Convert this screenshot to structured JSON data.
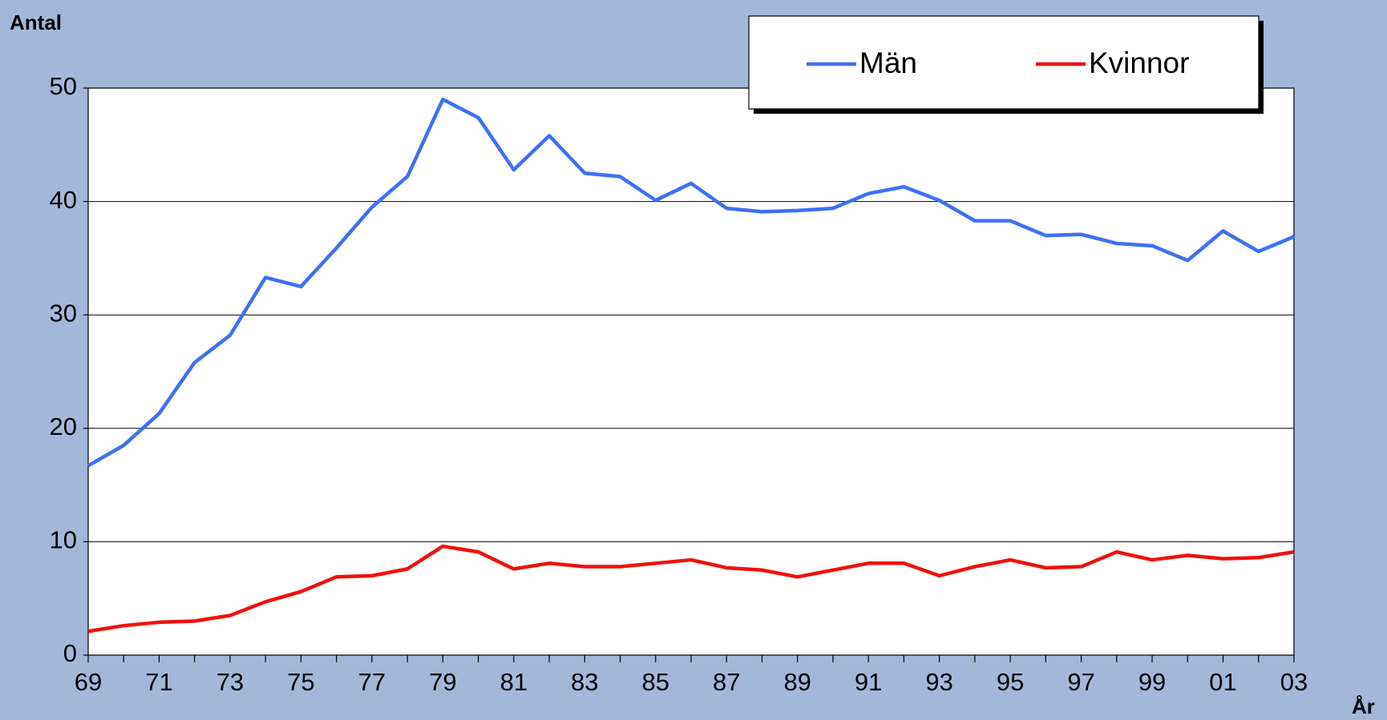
{
  "chart_data": {
    "type": "line",
    "y_axis_label": "Antal",
    "x_axis_label": "År",
    "categories": [
      "69",
      null,
      "71",
      null,
      "73",
      null,
      "75",
      null,
      "77",
      null,
      "79",
      null,
      "81",
      null,
      "83",
      null,
      "85",
      null,
      "87",
      null,
      "89",
      null,
      "91",
      null,
      "93",
      null,
      "95",
      null,
      "97",
      null,
      "99",
      null,
      "01",
      null,
      "03"
    ],
    "series": [
      {
        "name": "Män",
        "color": "#3f6ff5",
        "values": [
          16.7,
          18.5,
          21.3,
          25.8,
          28.2,
          33.3,
          32.5,
          35.9,
          39.5,
          42.2,
          49.0,
          47.4,
          42.8,
          45.8,
          42.5,
          42.2,
          40.1,
          41.6,
          39.4,
          39.1,
          39.2,
          39.4,
          40.7,
          41.3,
          40.1,
          38.3,
          38.3,
          37.0,
          37.1,
          36.3,
          36.1,
          34.8,
          37.4,
          35.6,
          36.9
        ]
      },
      {
        "name": "Kvinnor",
        "color": "#f01010",
        "values": [
          2.1,
          2.6,
          2.9,
          3.0,
          3.5,
          4.7,
          5.6,
          6.9,
          7.0,
          7.6,
          9.6,
          9.1,
          7.6,
          8.1,
          7.8,
          7.8,
          8.1,
          8.4,
          7.7,
          7.5,
          6.9,
          7.5,
          8.1,
          8.1,
          7.0,
          7.8,
          8.4,
          7.7,
          7.8,
          9.1,
          8.4,
          8.8,
          8.5,
          8.6,
          9.1
        ]
      }
    ],
    "ylim": [
      0,
      50
    ],
    "yticks": [
      0,
      10,
      20,
      30,
      40,
      50
    ],
    "grid": true,
    "legend": "top-right"
  }
}
